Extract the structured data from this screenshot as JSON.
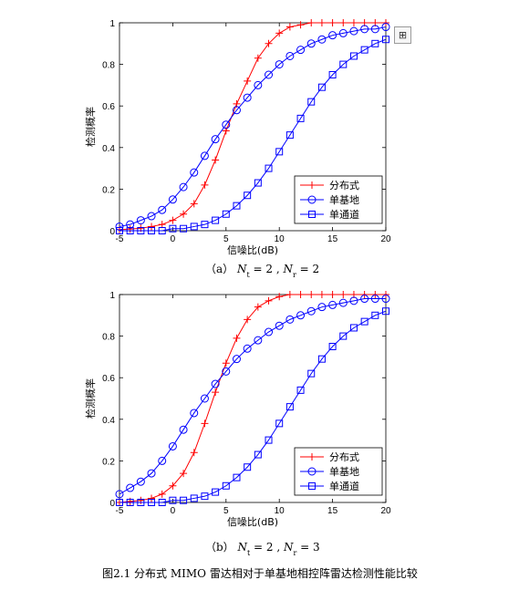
{
  "charts": [
    {
      "caption_a": "（a）",
      "caption_sym1": "N",
      "caption_sub1": "t",
      "caption_eq1": " = 2 , ",
      "caption_sym2": "N",
      "caption_sub2": "r",
      "caption_eq2": " = 2"
    },
    {
      "caption_a": "（b）",
      "caption_sym1": "N",
      "caption_sub1": "t",
      "caption_eq1": " = 2 , ",
      "caption_sym2": "N",
      "caption_sub2": "r",
      "caption_eq2": " = 3"
    }
  ],
  "toolbar_icon": "rotate-plot-icon",
  "toolbar_glyph": "⊞",
  "figure_caption": "图2.1  分布式 MIMO 雷达相对于单基地相控阵雷达检测性能比较",
  "chart_data": [
    {
      "type": "line",
      "xlabel": "信噪比(dB)",
      "ylabel": "检测概率",
      "xlim": [
        -5,
        20
      ],
      "ylim": [
        0,
        1
      ],
      "xticks": [
        "-5",
        "0",
        "5",
        "10",
        "15",
        "20"
      ],
      "yticks": [
        "0",
        "0.2",
        "0.4",
        "0.6",
        "0.8",
        "1"
      ],
      "grid": false,
      "legend_position": "bottom-right",
      "x": [
        -5,
        -4,
        -3,
        -2,
        -1,
        0,
        1,
        2,
        3,
        4,
        5,
        6,
        7,
        8,
        9,
        10,
        11,
        12,
        13,
        14,
        15,
        16,
        17,
        18,
        19,
        20
      ],
      "series": [
        {
          "name": "分布式",
          "color": "#ff0000",
          "marker": "plus",
          "values": [
            0.005,
            0.008,
            0.012,
            0.02,
            0.03,
            0.05,
            0.08,
            0.13,
            0.22,
            0.34,
            0.48,
            0.61,
            0.72,
            0.83,
            0.9,
            0.95,
            0.98,
            0.99,
            1.0,
            1.0,
            1.0,
            1.0,
            1.0,
            1.0,
            1.0,
            1.0
          ]
        },
        {
          "name": "单基地",
          "color": "#0000ff",
          "marker": "circle",
          "values": [
            0.02,
            0.03,
            0.05,
            0.07,
            0.1,
            0.15,
            0.21,
            0.28,
            0.36,
            0.44,
            0.51,
            0.58,
            0.64,
            0.7,
            0.75,
            0.8,
            0.84,
            0.87,
            0.9,
            0.92,
            0.94,
            0.95,
            0.96,
            0.97,
            0.97,
            0.98
          ]
        },
        {
          "name": "单通道",
          "color": "#0000ff",
          "marker": "square",
          "values": [
            0.0,
            0.0,
            0.0,
            0.0,
            0.0,
            0.01,
            0.01,
            0.02,
            0.03,
            0.05,
            0.08,
            0.12,
            0.17,
            0.23,
            0.3,
            0.38,
            0.46,
            0.54,
            0.62,
            0.69,
            0.75,
            0.8,
            0.84,
            0.87,
            0.9,
            0.92
          ]
        }
      ]
    },
    {
      "type": "line",
      "xlabel": "信噪比(dB)",
      "ylabel": "检测概率",
      "xlim": [
        -5,
        20
      ],
      "ylim": [
        0,
        1
      ],
      "xticks": [
        "-5",
        "0",
        "5",
        "10",
        "15",
        "20"
      ],
      "yticks": [
        "0",
        "0.2",
        "0.4",
        "0.6",
        "0.8",
        "1"
      ],
      "grid": false,
      "legend_position": "bottom-right",
      "x": [
        -5,
        -4,
        -3,
        -2,
        -1,
        0,
        1,
        2,
        3,
        4,
        5,
        6,
        7,
        8,
        9,
        10,
        11,
        12,
        13,
        14,
        15,
        16,
        17,
        18,
        19,
        20
      ],
      "series": [
        {
          "name": "分布式",
          "color": "#ff0000",
          "marker": "plus",
          "values": [
            0.0,
            0.005,
            0.01,
            0.02,
            0.04,
            0.08,
            0.14,
            0.24,
            0.38,
            0.53,
            0.67,
            0.79,
            0.88,
            0.94,
            0.97,
            0.99,
            1.0,
            1.0,
            1.0,
            1.0,
            1.0,
            1.0,
            1.0,
            1.0,
            1.0,
            1.0
          ]
        },
        {
          "name": "单基地",
          "color": "#0000ff",
          "marker": "circle",
          "values": [
            0.04,
            0.07,
            0.1,
            0.14,
            0.2,
            0.27,
            0.35,
            0.43,
            0.5,
            0.57,
            0.63,
            0.69,
            0.74,
            0.78,
            0.82,
            0.85,
            0.88,
            0.9,
            0.92,
            0.94,
            0.95,
            0.96,
            0.97,
            0.98,
            0.98,
            0.98
          ]
        },
        {
          "name": "单通道",
          "color": "#0000ff",
          "marker": "square",
          "values": [
            0.0,
            0.0,
            0.0,
            0.0,
            0.0,
            0.01,
            0.01,
            0.02,
            0.03,
            0.05,
            0.08,
            0.12,
            0.17,
            0.23,
            0.3,
            0.38,
            0.46,
            0.54,
            0.62,
            0.69,
            0.75,
            0.8,
            0.84,
            0.87,
            0.9,
            0.92
          ]
        }
      ]
    }
  ]
}
